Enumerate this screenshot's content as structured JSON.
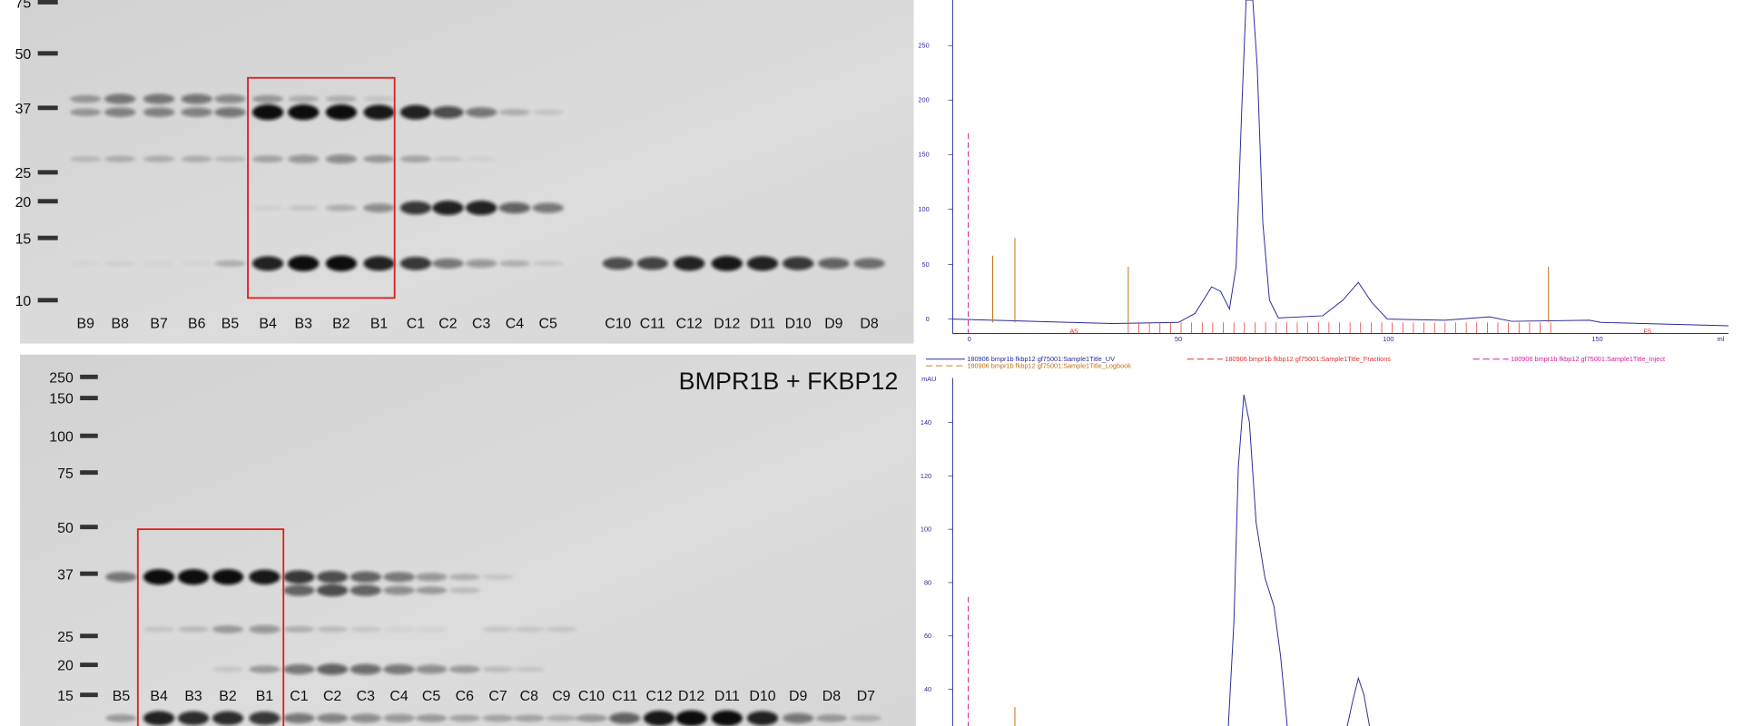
{
  "top_gel": {
    "markers": [
      "75",
      "50",
      "37",
      "25",
      "20",
      "15",
      "10"
    ],
    "lanes": [
      "B9",
      "B8",
      "B7",
      "B6",
      "B5",
      "B4",
      "B3",
      "B2",
      "B1",
      "C1",
      "C2",
      "C3",
      "C4",
      "C5",
      "C10",
      "C11",
      "C12",
      "D12",
      "D11",
      "D10",
      "D9",
      "D8"
    ]
  },
  "bottom_gel": {
    "title": "BMPR1B + FKBP12",
    "markers": [
      "250",
      "150",
      "100",
      "75",
      "50",
      "37",
      "25",
      "20",
      "15"
    ],
    "lanes": [
      "B5",
      "B4",
      "B3",
      "B2",
      "B1",
      "C1",
      "C2",
      "C3",
      "C4",
      "C5",
      "C6",
      "C7",
      "C8",
      "C9",
      "C10",
      "C11",
      "C12",
      "D12",
      "D11",
      "D10",
      "D9",
      "D8",
      "D7"
    ]
  },
  "top_chromatogram": {
    "yticks": [
      "0",
      "50",
      "100",
      "150",
      "200",
      "250"
    ],
    "xticks": [
      "0",
      "50",
      "100",
      "150",
      "ml"
    ],
    "fractions": [
      "A5",
      "F5"
    ]
  },
  "legend": [
    "180906 bmpr1b fkbp12 gf75001:Sample1Title_UV",
    "180906 bmpr1b fkbp12 gf75001:Sample1Title_Fractions",
    "180906 bmpr1b fkbp12 gf75001:Sample1Title_Inject",
    "180906 bmpr1b fkbp12 gf75001:Sample1Title_Logbook"
  ],
  "bottom_chromatogram": {
    "unit": "mAU",
    "yticks": [
      "140",
      "120",
      "100",
      "80",
      "60",
      "40"
    ]
  }
}
